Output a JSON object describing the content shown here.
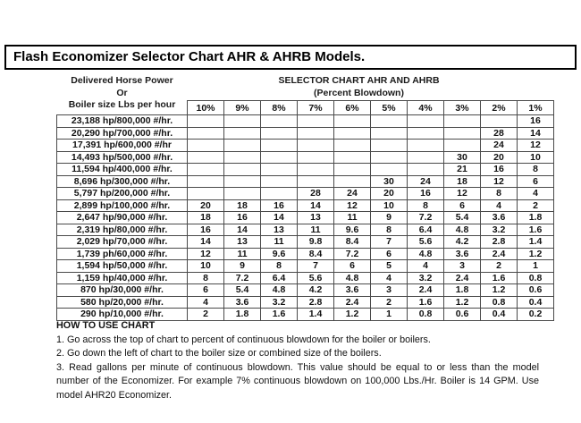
{
  "title": "Flash Economizer Selector Chart AHR & AHRB Models.",
  "left_header": {
    "line1": "Delivered Horse Power",
    "line2": "Or",
    "line3": "Boiler size Lbs per hour"
  },
  "right_header": {
    "line1": "SELECTOR CHART AHR AND AHRB",
    "line2": "(Percent Blowdown)"
  },
  "chart_data": {
    "type": "table",
    "columns": [
      "10%",
      "9%",
      "8%",
      "7%",
      "6%",
      "5%",
      "4%",
      "3%",
      "2%",
      "1%"
    ],
    "rows": [
      {
        "label": "23,188 hp/800,000 #/hr.",
        "values": [
          "",
          "",
          "",
          "",
          "",
          "",
          "",
          "",
          "",
          "16"
        ]
      },
      {
        "label": "20,290 hp/700,000 #/hr.",
        "values": [
          "",
          "",
          "",
          "",
          "",
          "",
          "",
          "",
          "28",
          "14"
        ]
      },
      {
        "label": "17,391 hp/600,000 #/hr",
        "values": [
          "",
          "",
          "",
          "",
          "",
          "",
          "",
          "",
          "24",
          "12"
        ]
      },
      {
        "label": "14,493 hp/500,000 #/hr.",
        "values": [
          "",
          "",
          "",
          "",
          "",
          "",
          "",
          "30",
          "20",
          "10"
        ]
      },
      {
        "label": "11,594 hp/400,000 #/hr.",
        "values": [
          "",
          "",
          "",
          "",
          "",
          "",
          "",
          "21",
          "16",
          "8"
        ]
      },
      {
        "label": "8,696 hp/300,000 #/hr.",
        "values": [
          "",
          "",
          "",
          "",
          "",
          "30",
          "24",
          "18",
          "12",
          "6"
        ]
      },
      {
        "label": "5,797 hp/200,000 #/hr.",
        "values": [
          "",
          "",
          "",
          "28",
          "24",
          "20",
          "16",
          "12",
          "8",
          "4"
        ]
      },
      {
        "label": "2,899 hp/100,000 #/hr.",
        "values": [
          "20",
          "18",
          "16",
          "14",
          "12",
          "10",
          "8",
          "6",
          "4",
          "2"
        ]
      },
      {
        "label": "2,647 hp/90,000 #/hr.",
        "values": [
          "18",
          "16",
          "14",
          "13",
          "11",
          "9",
          "7.2",
          "5.4",
          "3.6",
          "1.8"
        ]
      },
      {
        "label": "2,319 hp/80,000 #/hr.",
        "values": [
          "16",
          "14",
          "13",
          "11",
          "9.6",
          "8",
          "6.4",
          "4.8",
          "3.2",
          "1.6"
        ]
      },
      {
        "label": "2,029 hp/70,000 #/hr.",
        "values": [
          "14",
          "13",
          "11",
          "9.8",
          "8.4",
          "7",
          "5.6",
          "4.2",
          "2.8",
          "1.4"
        ]
      },
      {
        "label": "1,739 ph/60,000 #/hr.",
        "values": [
          "12",
          "11",
          "9.6",
          "8.4",
          "7.2",
          "6",
          "4.8",
          "3.6",
          "2.4",
          "1.2"
        ]
      },
      {
        "label": "1,594 hp/50,000 #/hr.",
        "values": [
          "10",
          "9",
          "8",
          "7",
          "6",
          "5",
          "4",
          "3",
          "2",
          "1"
        ]
      },
      {
        "label": "1,159 hp/40,000 #/hr.",
        "values": [
          "8",
          "7.2",
          "6.4",
          "5.6",
          "4.8",
          "4",
          "3.2",
          "2.4",
          "1.6",
          "0.8"
        ]
      },
      {
        "label": "870 hp/30,000 #/hr.",
        "values": [
          "6",
          "5.4",
          "4.8",
          "4.2",
          "3.6",
          "3",
          "2.4",
          "1.8",
          "1.2",
          "0.6"
        ]
      },
      {
        "label": "580 hp/20,000 #/hr.",
        "values": [
          "4",
          "3.6",
          "3.2",
          "2.8",
          "2.4",
          "2",
          "1.6",
          "1.2",
          "0.8",
          "0.4"
        ]
      },
      {
        "label": "290 hp/10,000 #/hr.",
        "values": [
          "2",
          "1.8",
          "1.6",
          "1.4",
          "1.2",
          "1",
          "0.8",
          "0.6",
          "0.4",
          "0.2"
        ]
      }
    ]
  },
  "footer": {
    "heading": "HOW TO USE CHART",
    "steps": [
      "1. Go across the top of chart to percent of continuous blowdown for the boiler or boilers.",
      "2. Go down the left of chart to the boiler size or combined size of the boilers.",
      "3. Read gallons per minute of continuous blowdown. This value should be equal to or less than the model number of the Economizer. For example 7% continuous blowdown on 100,000 Lbs./Hr. Boiler is 14 GPM. Use model AHR20 Economizer."
    ]
  }
}
